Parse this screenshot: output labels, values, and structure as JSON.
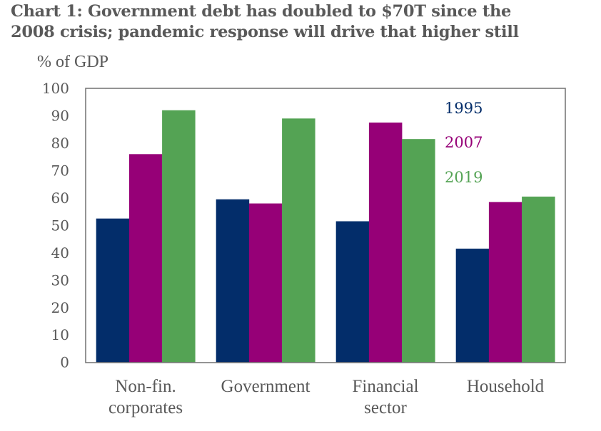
{
  "chart_data": {
    "type": "bar",
    "title_lines": [
      "Chart 1: Government debt has doubled to $70T since the",
      "2008 crisis; pandemic response will drive that higher still"
    ],
    "ylabel": "% of GDP",
    "xlabel": "",
    "ylim": [
      0,
      100
    ],
    "yticks": [
      "0",
      "10",
      "20",
      "30",
      "40",
      "50",
      "60",
      "70",
      "80",
      "90",
      "100"
    ],
    "ytick_values": [
      0,
      10,
      20,
      30,
      40,
      50,
      60,
      70,
      80,
      90,
      100
    ],
    "grid": false,
    "legend_position": "top-right",
    "categories": [
      [
        "Non-fin.",
        "corporates"
      ],
      [
        "Government"
      ],
      [
        "Financial",
        "sector"
      ],
      [
        "Household"
      ]
    ],
    "series": [
      {
        "name": "1995",
        "color": "#032d6a",
        "values": [
          52.5,
          59.5,
          51.5,
          41.5
        ]
      },
      {
        "name": "2007",
        "color": "#960077",
        "values": [
          76,
          58,
          87.5,
          58.5
        ]
      },
      {
        "name": "2019",
        "color": "#54a354",
        "values": [
          92,
          89,
          81.5,
          60.5
        ]
      }
    ]
  }
}
